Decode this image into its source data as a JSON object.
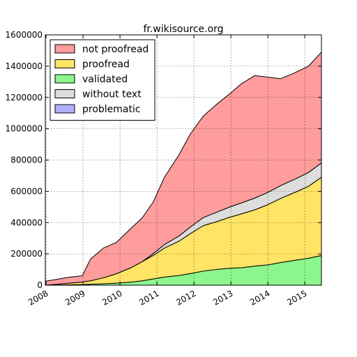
{
  "chart_data": {
    "type": "area",
    "stacked": true,
    "title": "fr.wikisource.org",
    "xlabel": "",
    "ylabel": "",
    "xlim": [
      2007.98,
      2015.45
    ],
    "ylim": [
      0,
      1600000
    ],
    "x_ticks": [
      2008,
      2009,
      2010,
      2011,
      2012,
      2013,
      2014,
      2015
    ],
    "x_tick_labels": [
      "2008",
      "2009",
      "2010",
      "2011",
      "2012",
      "2013",
      "2014",
      "2015"
    ],
    "y_ticks": [
      0,
      200000,
      400000,
      600000,
      800000,
      1000000,
      1200000,
      1400000,
      1600000
    ],
    "y_tick_labels": [
      "0",
      "200000",
      "400000",
      "600000",
      "800000",
      "1000000",
      "1200000",
      "1400000",
      "1600000"
    ],
    "grid": true,
    "legend_position": "top-left",
    "x": [
      2007.98,
      2008.3,
      2008.6,
      2008.98,
      2009.2,
      2009.55,
      2009.9,
      2010.3,
      2010.6,
      2010.9,
      2011.2,
      2011.6,
      2011.9,
      2012.25,
      2012.6,
      2012.95,
      2013.3,
      2013.65,
      2014.0,
      2014.35,
      2014.75,
      2015.1,
      2015.45
    ],
    "series": [
      {
        "name": "validated",
        "color": "#8cf58c",
        "values": [
          0,
          1000,
          2000,
          4000,
          6000,
          9000,
          13000,
          20000,
          28000,
          40000,
          52000,
          62000,
          74000,
          90000,
          100000,
          108000,
          112000,
          122000,
          130000,
          145000,
          160000,
          172000,
          190000
        ]
      },
      {
        "name": "problematic",
        "color": "#afafff",
        "values": [
          0,
          0,
          0,
          0,
          0,
          0,
          0,
          0,
          0,
          0,
          0,
          0,
          0,
          0,
          0,
          0,
          0,
          0,
          0,
          0,
          0,
          0,
          0
        ]
      },
      {
        "name": "proofread",
        "color": "#ffe466",
        "values": [
          0,
          5000,
          10000,
          16000,
          22000,
          38000,
          60000,
          92000,
          122000,
          150000,
          185000,
          220000,
          255000,
          290000,
          305000,
          325000,
          345000,
          360000,
          385000,
          410000,
          435000,
          460000,
          500000
        ]
      },
      {
        "name": "without text",
        "color": "#dddddd",
        "values": [
          0,
          0,
          0,
          0,
          0,
          0,
          0,
          0,
          0,
          12000,
          22000,
          33000,
          42000,
          52000,
          60000,
          65000,
          70000,
          75000,
          78000,
          82000,
          85000,
          88000,
          92000
        ]
      },
      {
        "name": "not proofread",
        "color": "#ff9c9c",
        "values": [
          25000,
          32000,
          38000,
          40000,
          138000,
          190000,
          200000,
          252000,
          280000,
          330000,
          430000,
          520000,
          594000,
          648000,
          688000,
          722000,
          763000,
          783000,
          737000,
          683000,
          680000,
          680000,
          708000
        ]
      }
    ],
    "legend_entries": [
      "not proofread",
      "proofread",
      "validated",
      "without text",
      "problematic"
    ]
  }
}
